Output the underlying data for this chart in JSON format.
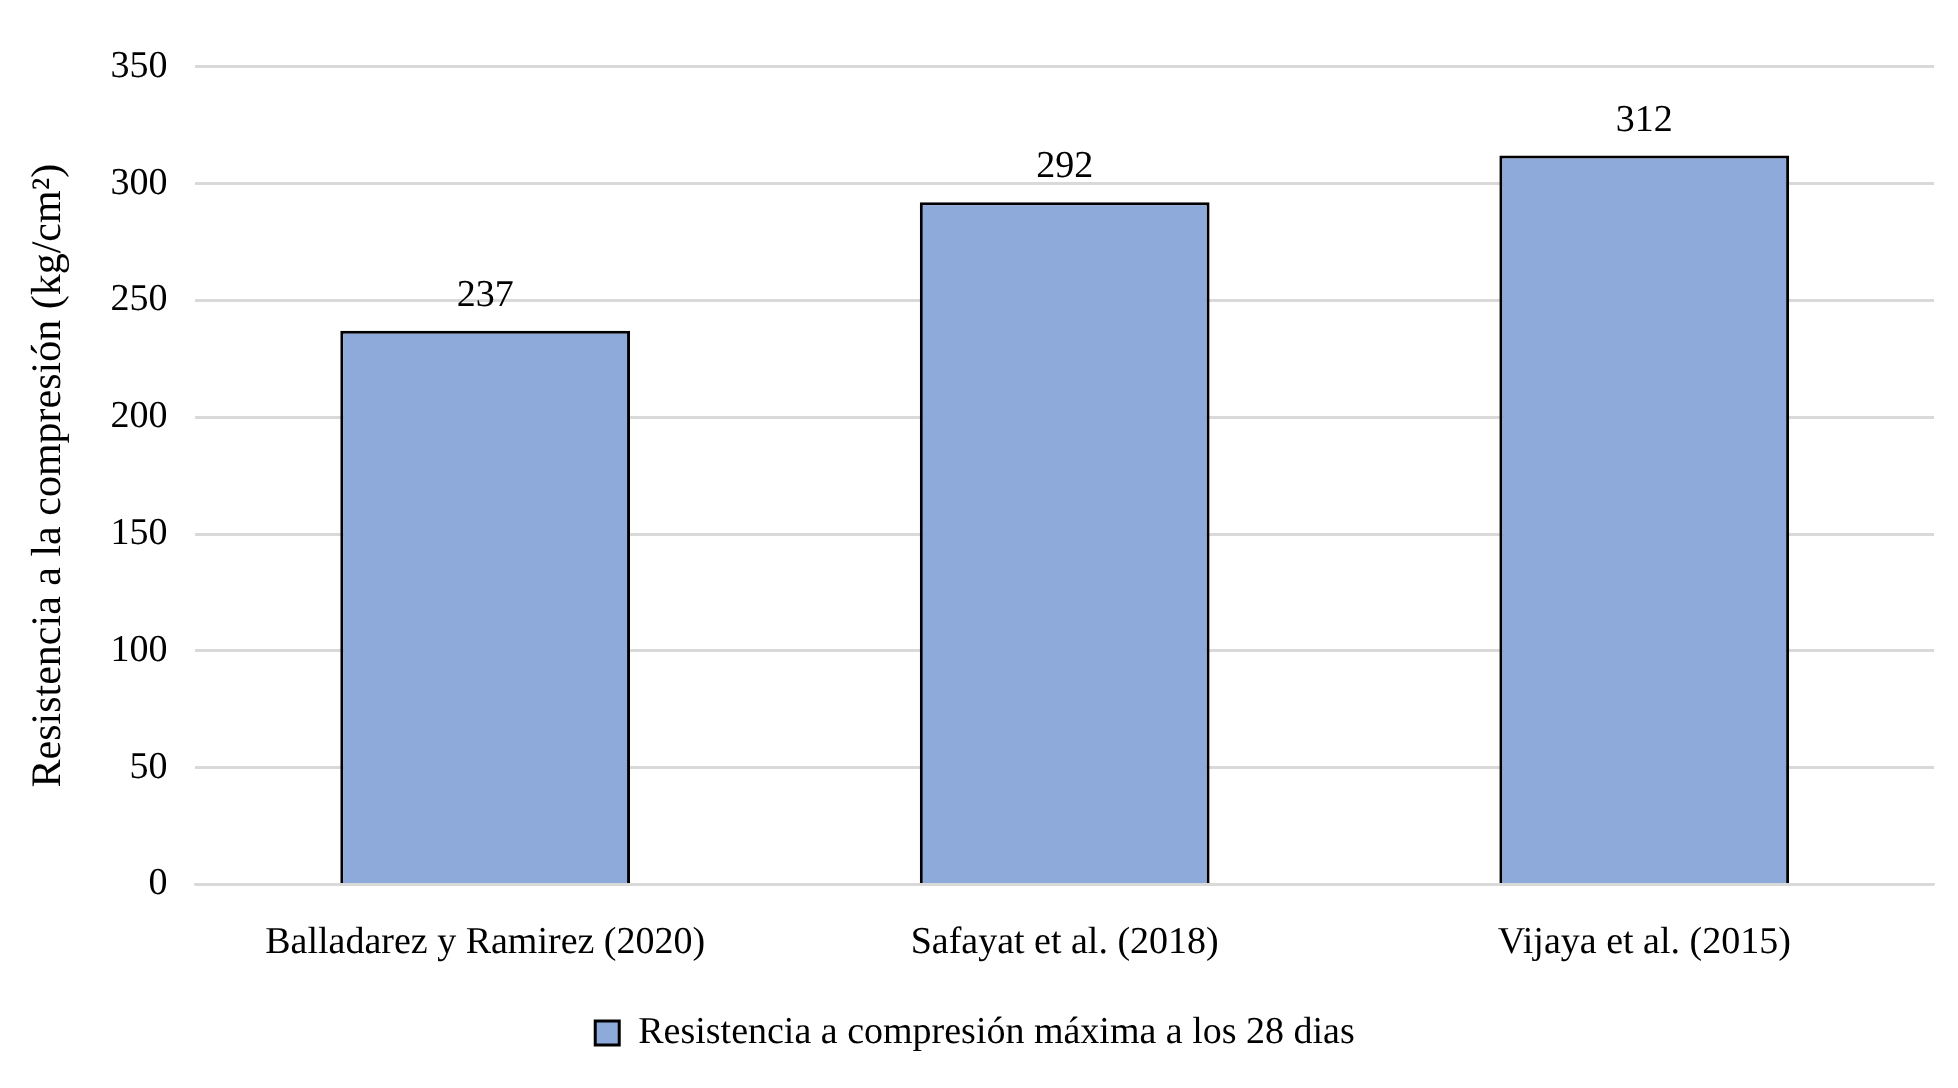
{
  "chart_data": {
    "type": "bar",
    "ylabel": "Resistencia a la compresión (kg/cm²)",
    "categories": [
      "Balladarez y Ramirez (2020)",
      "Safayat et al. (2018)",
      "Vijaya et al. (2015)"
    ],
    "series": [
      {
        "name": "Resistencia a compresión máxima a los 28 dias",
        "color": "#8eaadb",
        "values": [
          237,
          292,
          312
        ]
      }
    ],
    "ylim": [
      0,
      350
    ],
    "yticks": [
      0,
      50,
      100,
      150,
      200,
      250,
      300,
      350
    ],
    "grid": "y",
    "legend": "bottom",
    "data_labels": true
  }
}
